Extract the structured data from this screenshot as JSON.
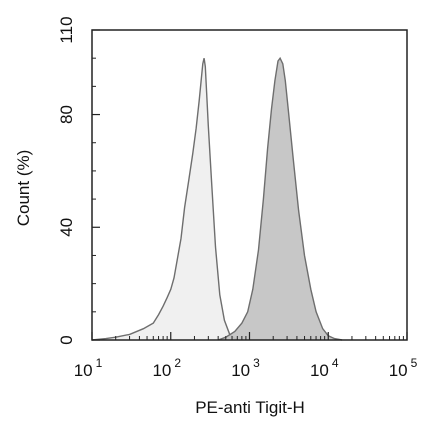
{
  "chart_data": {
    "type": "area",
    "title": "",
    "xlabel": "PE-anti Tigit-H",
    "ylabel": "Count  (%)",
    "x_scale": "log",
    "xlim": [
      10,
      100000
    ],
    "ylim": [
      0,
      110
    ],
    "x_ticks": [
      {
        "value": 10,
        "base": "10",
        "exp": "1"
      },
      {
        "value": 100,
        "base": "10",
        "exp": "2"
      },
      {
        "value": 1000,
        "base": "10",
        "exp": "3"
      },
      {
        "value": 10000,
        "base": "10",
        "exp": "4"
      },
      {
        "value": 100000,
        "base": "10",
        "exp": "5"
      }
    ],
    "y_ticks": [
      "0",
      "40",
      "80",
      "110"
    ],
    "grid": false,
    "legend": "none",
    "series": [
      {
        "fill": "#f0f0f0",
        "stroke": "#6e6e6e",
        "points": [
          [
            10,
            0
          ],
          [
            15,
            0.5
          ],
          [
            20,
            1
          ],
          [
            30,
            2
          ],
          [
            45,
            4
          ],
          [
            60,
            6
          ],
          [
            70,
            9
          ],
          [
            80,
            12
          ],
          [
            90,
            15
          ],
          [
            100,
            18
          ],
          [
            110,
            22
          ],
          [
            120,
            28
          ],
          [
            135,
            36
          ],
          [
            150,
            47
          ],
          [
            170,
            57
          ],
          [
            190,
            66
          ],
          [
            210,
            75
          ],
          [
            230,
            85
          ],
          [
            245,
            93
          ],
          [
            255,
            98
          ],
          [
            265,
            100
          ],
          [
            275,
            97
          ],
          [
            285,
            88
          ],
          [
            300,
            76
          ],
          [
            330,
            56
          ],
          [
            370,
            33
          ],
          [
            420,
            16
          ],
          [
            480,
            7
          ],
          [
            560,
            2
          ],
          [
            650,
            0.5
          ],
          [
            750,
            0
          ]
        ]
      },
      {
        "fill": "#c2c2c2",
        "stroke": "#6e6e6e",
        "points": [
          [
            400,
            0
          ],
          [
            500,
            1
          ],
          [
            650,
            3
          ],
          [
            800,
            6
          ],
          [
            950,
            10
          ],
          [
            1100,
            18
          ],
          [
            1300,
            32
          ],
          [
            1500,
            50
          ],
          [
            1700,
            68
          ],
          [
            1900,
            82
          ],
          [
            2100,
            92
          ],
          [
            2300,
            99
          ],
          [
            2450,
            100
          ],
          [
            2650,
            98
          ],
          [
            2850,
            92
          ],
          [
            3100,
            82
          ],
          [
            3600,
            64
          ],
          [
            4200,
            46
          ],
          [
            5000,
            30
          ],
          [
            6000,
            18
          ],
          [
            7000,
            10
          ],
          [
            8500,
            4
          ],
          [
            10000,
            1.5
          ],
          [
            12000,
            0.5
          ],
          [
            15000,
            0
          ]
        ]
      }
    ]
  }
}
